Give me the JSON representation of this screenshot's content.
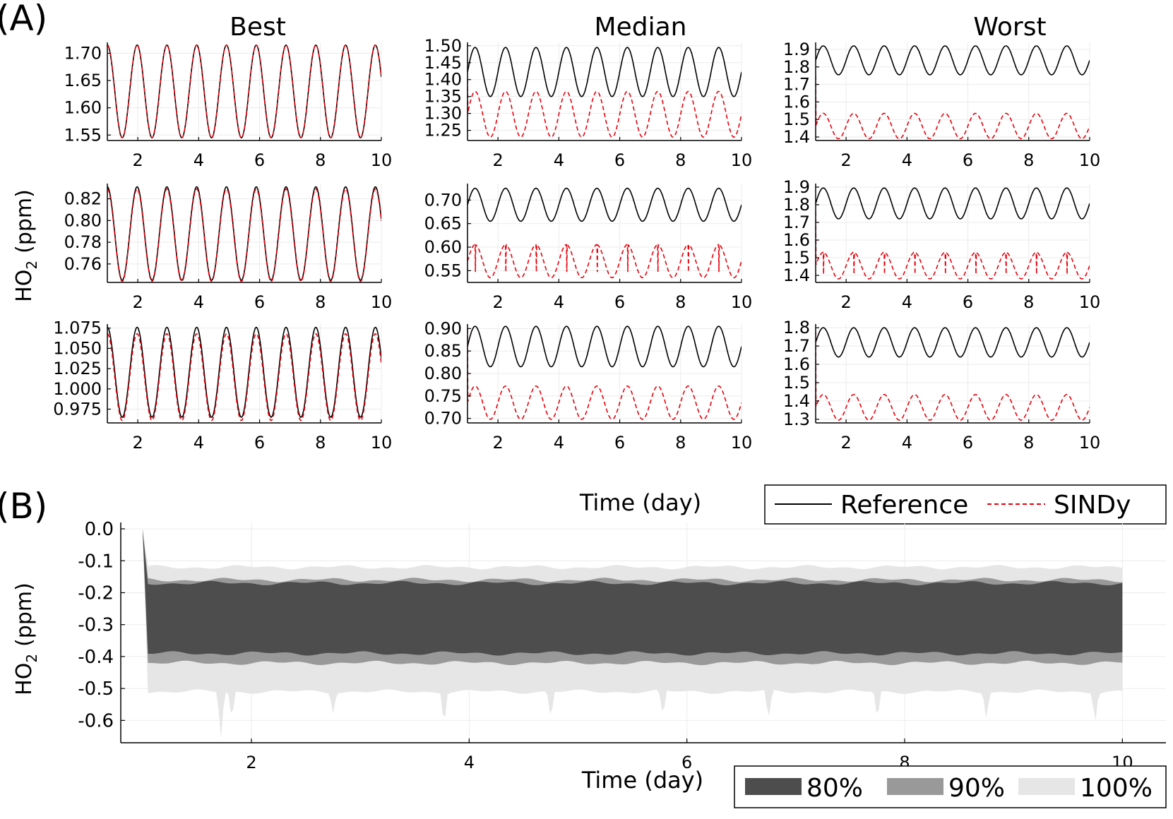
{
  "panel_a_label": "(A)",
  "panel_b_label": "(B)",
  "columns": [
    "Best",
    "Median",
    "Worst"
  ],
  "ylabel_main": "HO",
  "ylabel_sub": "2",
  "ylabel_unit": "(ppm)",
  "xlabel": "Time (day)",
  "legend_a": {
    "reference": "Reference",
    "sindy": "SINDy"
  },
  "legend_b": {
    "p80": "80%",
    "p90": "90%",
    "p100": "100%"
  },
  "colors": {
    "reference": "#000000",
    "sindy": "#e8000b",
    "band80": "#4d4d4d",
    "band90": "#999999",
    "band100": "#e6e6e6",
    "grid": "#ebebeb"
  },
  "chart_data": [
    {
      "type": "line",
      "panel": "A",
      "row": 1,
      "column": "Best",
      "xlim": [
        1,
        10
      ],
      "xticks": [
        2,
        4,
        6,
        8,
        10
      ],
      "ylim": [
        1.54,
        1.72
      ],
      "yticks": [
        1.55,
        1.6,
        1.65,
        1.7
      ],
      "ytick_labels": [
        "1.55",
        "1.60",
        "1.65",
        "1.70"
      ],
      "series": [
        {
          "name": "Reference",
          "style": "solid",
          "min": 1.545,
          "max": 1.715,
          "cycles": 9.2,
          "phase": 0.0
        },
        {
          "name": "SINDy",
          "style": "dashed",
          "min": 1.545,
          "max": 1.715,
          "cycles": 9.2,
          "phase": 0.0
        }
      ]
    },
    {
      "type": "line",
      "panel": "A",
      "row": 1,
      "column": "Median",
      "xlim": [
        1,
        10
      ],
      "xticks": [
        2,
        4,
        6,
        8,
        10
      ],
      "ylim": [
        1.22,
        1.51
      ],
      "yticks": [
        1.25,
        1.3,
        1.35,
        1.4,
        1.45,
        1.5
      ],
      "ytick_labels": [
        "1.25",
        "1.30",
        "1.35",
        "1.40",
        "1.45",
        "1.50"
      ],
      "series": [
        {
          "name": "Reference",
          "style": "solid",
          "min": 1.35,
          "max": 1.495,
          "cycles": 9.0,
          "phase": 0.25
        },
        {
          "name": "SINDy",
          "style": "dashed",
          "min": 1.23,
          "max": 1.365,
          "cycles": 9.0,
          "phase": 0.25,
          "start": 1.4
        }
      ]
    },
    {
      "type": "line",
      "panel": "A",
      "row": 1,
      "column": "Worst",
      "xlim": [
        1,
        10
      ],
      "xticks": [
        2,
        4,
        6,
        8,
        10
      ],
      "ylim": [
        1.38,
        1.94
      ],
      "yticks": [
        1.4,
        1.5,
        1.6,
        1.7,
        1.8,
        1.9
      ],
      "ytick_labels": [
        "1.4",
        "1.5",
        "1.6",
        "1.7",
        "1.8",
        "1.9"
      ],
      "series": [
        {
          "name": "Reference",
          "style": "solid",
          "min": 1.755,
          "max": 1.92,
          "cycles": 9.0,
          "phase": 0.25
        },
        {
          "name": "SINDy",
          "style": "dashed",
          "min": 1.39,
          "max": 1.535,
          "cycles": 9.0,
          "phase": 0.25,
          "start": 1.75
        }
      ]
    },
    {
      "type": "line",
      "panel": "A",
      "row": 2,
      "column": "Best",
      "xlim": [
        1,
        10
      ],
      "xticks": [
        2,
        4,
        6,
        8,
        10
      ],
      "ylim": [
        0.743,
        0.834
      ],
      "yticks": [
        0.76,
        0.78,
        0.8,
        0.82
      ],
      "ytick_labels": [
        "0.76",
        "0.78",
        "0.80",
        "0.82"
      ],
      "series": [
        {
          "name": "Reference",
          "style": "solid",
          "min": 0.745,
          "max": 0.831,
          "cycles": 9.2,
          "phase": 0.0
        },
        {
          "name": "SINDy",
          "style": "dashed",
          "min": 0.744,
          "max": 0.829,
          "cycles": 9.2,
          "phase": 0.0
        }
      ]
    },
    {
      "type": "line",
      "panel": "A",
      "row": 2,
      "column": "Median",
      "xlim": [
        1,
        10
      ],
      "xticks": [
        2,
        4,
        6,
        8,
        10
      ],
      "ylim": [
        0.525,
        0.735
      ],
      "yticks": [
        0.55,
        0.6,
        0.65,
        0.7
      ],
      "ytick_labels": [
        "0.55",
        "0.60",
        "0.65",
        "0.70"
      ],
      "series": [
        {
          "name": "Reference",
          "style": "solid",
          "min": 0.655,
          "max": 0.725,
          "cycles": 9.0,
          "phase": 0.25
        },
        {
          "name": "SINDy",
          "style": "dashed",
          "min": 0.535,
          "max": 0.605,
          "cycles": 9.0,
          "phase": 0.25,
          "spikes": true
        }
      ]
    },
    {
      "type": "line",
      "panel": "A",
      "row": 2,
      "column": "Worst",
      "xlim": [
        1,
        10
      ],
      "xticks": [
        2,
        4,
        6,
        8,
        10
      ],
      "ylim": [
        1.36,
        1.92
      ],
      "yticks": [
        1.4,
        1.5,
        1.6,
        1.7,
        1.8,
        1.9
      ],
      "ytick_labels": [
        "1.4",
        "1.5",
        "1.6",
        "1.7",
        "1.8",
        "1.9"
      ],
      "series": [
        {
          "name": "Reference",
          "style": "solid",
          "min": 1.72,
          "max": 1.895,
          "cycles": 9.0,
          "phase": 0.25
        },
        {
          "name": "SINDy",
          "style": "dashed",
          "min": 1.38,
          "max": 1.53,
          "cycles": 9.0,
          "phase": 0.25,
          "spikes": true,
          "start": 1.76
        }
      ]
    },
    {
      "type": "line",
      "panel": "A",
      "row": 3,
      "column": "Best",
      "xlim": [
        1,
        10
      ],
      "xticks": [
        2,
        4,
        6,
        8,
        10
      ],
      "ylim": [
        0.958,
        1.08
      ],
      "yticks": [
        0.975,
        1.0,
        1.025,
        1.05,
        1.075
      ],
      "ytick_labels": [
        "0.975",
        "1.000",
        "1.025",
        "1.050",
        "1.075"
      ],
      "series": [
        {
          "name": "Reference",
          "style": "solid",
          "min": 0.965,
          "max": 1.076,
          "cycles": 9.2,
          "phase": 0.0
        },
        {
          "name": "SINDy",
          "style": "dashed",
          "min": 0.961,
          "max": 1.068,
          "cycles": 9.2,
          "phase": 0.0
        }
      ]
    },
    {
      "type": "line",
      "panel": "A",
      "row": 3,
      "column": "Median",
      "xlim": [
        1,
        10
      ],
      "xticks": [
        2,
        4,
        6,
        8,
        10
      ],
      "ylim": [
        0.69,
        0.91
      ],
      "yticks": [
        0.7,
        0.75,
        0.8,
        0.85,
        0.9
      ],
      "ytick_labels": [
        "0.70",
        "0.75",
        "0.80",
        "0.85",
        "0.90"
      ],
      "series": [
        {
          "name": "Reference",
          "style": "solid",
          "min": 0.815,
          "max": 0.905,
          "cycles": 9.0,
          "phase": 0.25
        },
        {
          "name": "SINDy",
          "style": "dashed",
          "min": 0.698,
          "max": 0.772,
          "cycles": 9.0,
          "phase": 0.25,
          "start": 0.9
        }
      ]
    },
    {
      "type": "line",
      "panel": "A",
      "row": 3,
      "column": "Worst",
      "xlim": [
        1,
        10
      ],
      "xticks": [
        2,
        4,
        6,
        8,
        10
      ],
      "ylim": [
        1.28,
        1.82
      ],
      "yticks": [
        1.3,
        1.4,
        1.5,
        1.6,
        1.7,
        1.8
      ],
      "ytick_labels": [
        "1.3",
        "1.4",
        "1.5",
        "1.6",
        "1.7",
        "1.8"
      ],
      "series": [
        {
          "name": "Reference",
          "style": "solid",
          "min": 1.64,
          "max": 1.8,
          "cycles": 9.0,
          "phase": 0.25
        },
        {
          "name": "SINDy",
          "style": "dashed",
          "min": 1.295,
          "max": 1.435,
          "cycles": 9.0,
          "phase": 0.25,
          "start": 1.78
        }
      ]
    },
    {
      "type": "area",
      "panel": "B",
      "xlim": [
        0.8,
        10.4
      ],
      "ylim": [
        -0.67,
        0.02
      ],
      "xticks": [
        2,
        4,
        6,
        8,
        10
      ],
      "yticks": [
        0.0,
        -0.1,
        -0.2,
        -0.3,
        -0.4,
        -0.5,
        -0.6
      ],
      "ytick_labels": [
        "0.0",
        "-0.1",
        "-0.2",
        "-0.3",
        "-0.4",
        "-0.5",
        "-0.6"
      ],
      "start": {
        "x": 1.0,
        "y": 0.0
      },
      "x_range": [
        1.05,
        10.0
      ],
      "bands": [
        {
          "name": "100%",
          "upper": -0.12,
          "lower": -0.51
        },
        {
          "name": "90%",
          "upper": -0.16,
          "lower": -0.42
        },
        {
          "name": "80%",
          "upper": -0.17,
          "lower": -0.39
        }
      ],
      "lower_spikes_100": [
        [
          1.72,
          -0.66
        ],
        [
          1.82,
          -0.6
        ],
        [
          2.75,
          -0.58
        ],
        [
          3.77,
          -0.62
        ],
        [
          4.75,
          -0.6
        ],
        [
          5.78,
          -0.59
        ],
        [
          6.75,
          -0.6
        ],
        [
          7.75,
          -0.6
        ],
        [
          8.75,
          -0.6
        ],
        [
          9.75,
          -0.61
        ]
      ]
    }
  ]
}
